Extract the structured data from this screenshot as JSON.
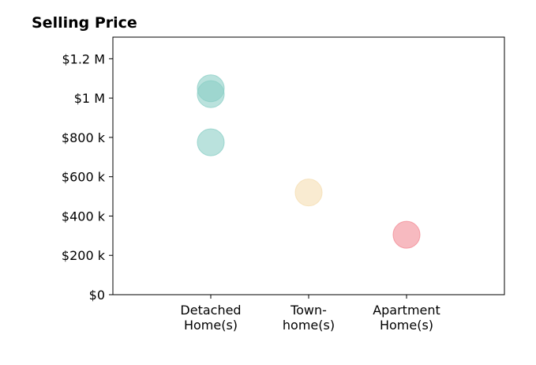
{
  "chart_data": {
    "type": "scatter",
    "title": "Selling Price",
    "xlabel": "",
    "ylabel": "",
    "categories": [
      [
        "Detached",
        "Home(s)"
      ],
      [
        "Town-",
        "home(s)"
      ],
      [
        "Apartment",
        "Home(s)"
      ]
    ],
    "ylim": [
      0,
      1200000
    ],
    "y_ticks": [
      {
        "value": 0,
        "label": "$0"
      },
      {
        "value": 200000,
        "label": "$200 k"
      },
      {
        "value": 400000,
        "label": "$400 k"
      },
      {
        "value": 600000,
        "label": "$600 k"
      },
      {
        "value": 800000,
        "label": "$800 k"
      },
      {
        "value": 1000000,
        "label": "$1 M"
      },
      {
        "value": 1200000,
        "label": "$1.2 M"
      }
    ],
    "points": [
      {
        "category": 0,
        "value": 1050000,
        "color": "#8ccfc7"
      },
      {
        "category": 0,
        "value": 1020000,
        "color": "#8ccfc7"
      },
      {
        "category": 0,
        "value": 775000,
        "color": "#8ccfc7"
      },
      {
        "category": 1,
        "value": 520000,
        "color": "#f5deb3"
      },
      {
        "category": 2,
        "value": 305000,
        "color": "#f28c96"
      }
    ],
    "grid": false,
    "legend": "none"
  }
}
